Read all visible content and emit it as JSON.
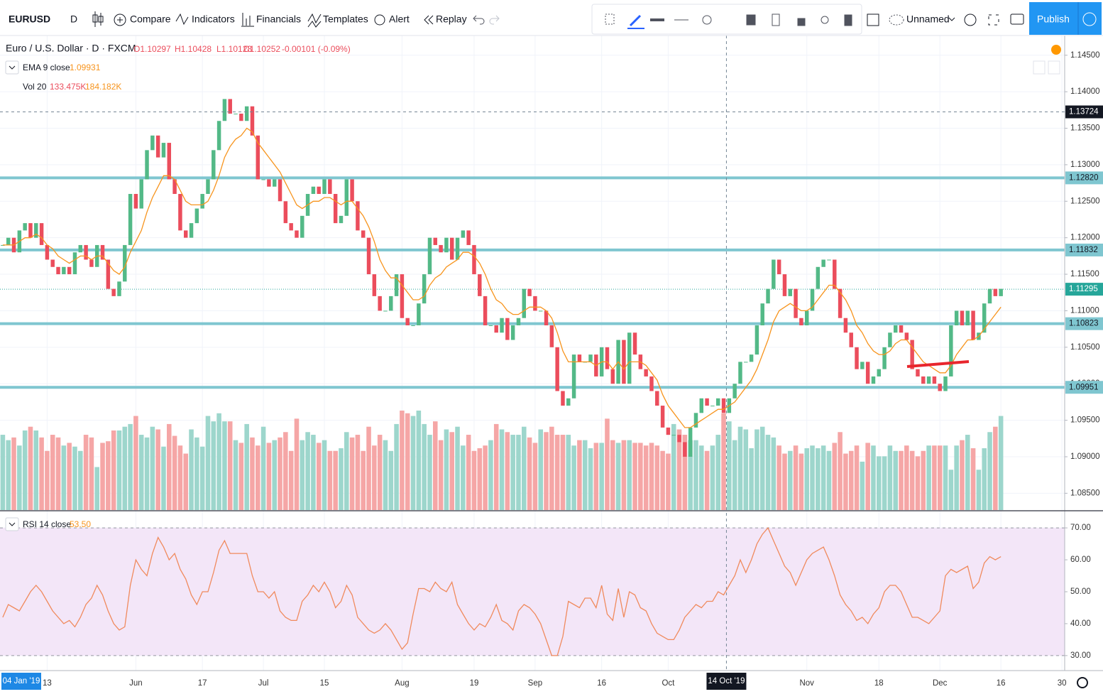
{
  "toolbar": {
    "symbol": "EURUSD",
    "interval": "D",
    "buttons": [
      "Compare",
      "Indicators",
      "Financials",
      "Templates",
      "Alert",
      "Replay"
    ],
    "layout_name": "Unnamed",
    "publish": "Publish"
  },
  "legend": {
    "symbol": "Euro / U.S. Dollar · D · FXCM",
    "ohlc": [
      "O1.10297",
      "H1.10428",
      "L1.10128",
      "C1.10252",
      "-0.00101 (-0.09%)"
    ],
    "ema": {
      "label": "EMA 9 close",
      "value": "1.09931"
    },
    "vol": {
      "label": "Vol 20",
      "values": [
        "133.475K",
        "184.182K"
      ]
    },
    "rsi": {
      "label": "RSI 14 close",
      "value": "53.50"
    }
  },
  "chart_data": [
    {
      "type": "candlestick",
      "xlim": [
        -0.5,
        191.5
      ],
      "ylim": [
        1.0827,
        1.1477
      ],
      "yticks": [
        {
          "value": 1.145,
          "label": "1.14500"
        },
        {
          "value": 1.14,
          "label": "1.14000"
        },
        {
          "value": 1.135,
          "label": "1.13500"
        },
        {
          "value": 1.13,
          "label": "1.13000"
        },
        {
          "value": 1.125,
          "label": "1.12500"
        },
        {
          "value": 1.12,
          "label": "1.12000"
        },
        {
          "value": 1.115,
          "label": "1.11500"
        },
        {
          "value": 1.11,
          "label": "1.11000"
        },
        {
          "value": 1.105,
          "label": "1.10500"
        },
        {
          "value": 1.1,
          "label": "1.10000"
        },
        {
          "value": 1.095,
          "label": "1.09500"
        },
        {
          "value": 1.09,
          "label": "1.09000"
        },
        {
          "value": 1.085,
          "label": "1.08500"
        }
      ],
      "up_color": "#53b987",
      "down_color": "#eb4d5c",
      "volume_up_color": "#9dd6cc",
      "volume_down_color": "#f5a6a6",
      "close": [
        1.119,
        1.12,
        1.118,
        1.121,
        1.122,
        1.12,
        1.122,
        1.119,
        1.117,
        1.116,
        1.115,
        1.116,
        1.115,
        1.118,
        1.119,
        1.117,
        1.116,
        1.119,
        1.117,
        1.113,
        1.112,
        1.114,
        1.119,
        1.126,
        1.124,
        1.128,
        1.132,
        1.134,
        1.131,
        1.133,
        1.128,
        1.126,
        1.121,
        1.12,
        1.122,
        1.124,
        1.126,
        1.128,
        1.132,
        1.136,
        1.139,
        1.137,
        1.137,
        1.136,
        1.138,
        1.134,
        1.128,
        1.128,
        1.127,
        1.128,
        1.125,
        1.122,
        1.121,
        1.12,
        1.123,
        1.126,
        1.127,
        1.126,
        1.128,
        1.126,
        1.122,
        1.123,
        1.128,
        1.125,
        1.121,
        1.12,
        1.115,
        1.112,
        1.11,
        1.11,
        1.112,
        1.115,
        1.109,
        1.108,
        1.108,
        1.111,
        1.115,
        1.12,
        1.119,
        1.118,
        1.12,
        1.117,
        1.12,
        1.121,
        1.119,
        1.115,
        1.112,
        1.108,
        1.108,
        1.107,
        1.109,
        1.106,
        1.108,
        1.109,
        1.113,
        1.112,
        1.11,
        1.11,
        1.108,
        1.105,
        1.099,
        1.097,
        1.098,
        1.104,
        1.103,
        1.103,
        1.104,
        1.101,
        1.105,
        1.102,
        1.1,
        1.106,
        1.1,
        1.107,
        1.104,
        1.102,
        1.101,
        1.099,
        1.097,
        1.094,
        1.093,
        1.093,
        1.092,
        1.09,
        1.094,
        1.096,
        1.098,
        1.097,
        1.097,
        1.098,
        1.096,
        1.098,
        1.1,
        1.103,
        1.103,
        1.104,
        1.108,
        1.111,
        1.113,
        1.117,
        1.115,
        1.112,
        1.113,
        1.109,
        1.108,
        1.11,
        1.113,
        1.116,
        1.117,
        1.117,
        1.113,
        1.109,
        1.107,
        1.105,
        1.102,
        1.103,
        1.1,
        1.101,
        1.102,
        1.105,
        1.107,
        1.108,
        1.107,
        1.106,
        1.102,
        1.101,
        1.1,
        1.101,
        1.1,
        1.099,
        1.101,
        1.108,
        1.11,
        1.108,
        1.11,
        1.106,
        1.107,
        1.111,
        1.113,
        1.112,
        1.113
      ],
      "series": [
        {
          "name": "EMA 9 close",
          "color": "#f7941d",
          "values": [
            1.119,
            1.119,
            1.119,
            1.1195,
            1.12,
            1.12,
            1.1205,
            1.12,
            1.119,
            1.1185,
            1.1175,
            1.117,
            1.1165,
            1.117,
            1.1175,
            1.1175,
            1.117,
            1.1175,
            1.1175,
            1.1165,
            1.1155,
            1.115,
            1.116,
            1.118,
            1.1195,
            1.121,
            1.1235,
            1.1255,
            1.127,
            1.1285,
            1.1285,
            1.128,
            1.1265,
            1.125,
            1.1245,
            1.1245,
            1.1245,
            1.125,
            1.1265,
            1.1285,
            1.131,
            1.1325,
            1.1335,
            1.134,
            1.135,
            1.1345,
            1.133,
            1.132,
            1.131,
            1.13,
            1.129,
            1.1275,
            1.126,
            1.1245,
            1.124,
            1.1245,
            1.125,
            1.125,
            1.1255,
            1.1255,
            1.125,
            1.1245,
            1.125,
            1.125,
            1.124,
            1.123,
            1.1215,
            1.1195,
            1.117,
            1.1155,
            1.1145,
            1.1145,
            1.1135,
            1.1125,
            1.1115,
            1.1115,
            1.112,
            1.1135,
            1.1145,
            1.115,
            1.116,
            1.1165,
            1.117,
            1.118,
            1.118,
            1.1175,
            1.1165,
            1.115,
            1.113,
            1.1115,
            1.111,
            1.11,
            1.1095,
            1.1095,
            1.11,
            1.1105,
            1.1105,
            1.1105,
            1.11,
            1.109,
            1.107,
            1.1045,
            1.103,
            1.103,
            1.103,
            1.103,
            1.103,
            1.1025,
            1.103,
            1.103,
            1.102,
            1.103,
            1.102,
            1.103,
            1.103,
            1.103,
            1.1025,
            1.1015,
            1.1005,
            1.0985,
            1.097,
            1.096,
            1.095,
            1.094,
            1.094,
            1.0945,
            1.095,
            1.0955,
            1.096,
            1.0965,
            1.0965,
            1.097,
            1.0975,
            1.0985,
            1.0995,
            1.1005,
            1.102,
            1.104,
            1.106,
            1.1085,
            1.11,
            1.1105,
            1.111,
            1.1105,
            1.11,
            1.11,
            1.1105,
            1.1115,
            1.1125,
            1.1135,
            1.1135,
            1.1125,
            1.1115,
            1.11,
            1.108,
            1.107,
            1.1055,
            1.1045,
            1.104,
            1.104,
            1.1045,
            1.1055,
            1.106,
            1.106,
            1.105,
            1.104,
            1.103,
            1.1025,
            1.102,
            1.1015,
            1.1015,
            1.1025,
            1.104,
            1.105,
            1.106,
            1.106,
            1.1065,
            1.1075,
            1.1085,
            1.1095,
            1.1105
          ]
        }
      ],
      "volume": [
        140,
        130,
        135,
        120,
        148,
        155,
        148,
        135,
        110,
        140,
        135,
        120,
        125,
        118,
        110,
        140,
        135,
        80,
        125,
        128,
        148,
        148,
        155,
        160,
        175,
        140,
        135,
        155,
        150,
        118,
        160,
        138,
        120,
        105,
        150,
        135,
        118,
        175,
        165,
        180,
        165,
        165,
        130,
        125,
        160,
        135,
        120,
        155,
        125,
        130,
        135,
        145,
        110,
        170,
        130,
        145,
        140,
        125,
        130,
        110,
        110,
        115,
        145,
        135,
        140,
        110,
        155,
        120,
        140,
        130,
        110,
        160,
        185,
        180,
        175,
        185,
        160,
        140,
        165,
        130,
        150,
        145,
        155,
        120,
        140,
        110,
        115,
        120,
        130,
        160,
        150,
        145,
        140,
        140,
        155,
        135,
        125,
        150,
        145,
        155,
        140,
        140,
        140,
        120,
        130,
        130,
        115,
        125,
        125,
        170,
        130,
        125,
        130,
        130,
        125,
        125,
        120,
        125,
        120,
        110,
        105,
        160,
        150,
        140,
        130,
        130,
        120,
        110,
        120,
        140,
        180,
        165,
        130,
        155,
        150,
        115,
        150,
        155,
        140,
        135,
        120,
        105,
        110,
        120,
        105,
        115,
        120,
        115,
        120,
        110,
        125,
        145,
        105,
        110,
        120,
        90,
        125,
        120,
        100,
        100,
        120,
        110,
        110,
        120,
        110,
        100,
        110,
        120,
        120,
        120,
        120,
        75,
        120,
        130,
        140,
        115,
        75,
        115,
        145,
        155,
        175
      ],
      "levels": [
        {
          "value": 1.1282,
          "label": "1.12820"
        },
        {
          "value": 1.11832,
          "label": "1.11832"
        },
        {
          "value": 1.10823,
          "label": "1.10823"
        },
        {
          "value": 1.09951,
          "label": "1.09951"
        }
      ],
      "level_color": "#7fc6d0",
      "last_price": {
        "value": 1.11295,
        "label": "1.11295"
      },
      "last_color": "#26a69a",
      "crosshair": {
        "x": 130,
        "x_label": "14 Oct '19",
        "y": 1.13724
      }
    },
    {
      "type": "line",
      "xlim": [
        -0.5,
        191.5
      ],
      "ylim": [
        25.3,
        74.7
      ],
      "yticks": [
        {
          "value": 70,
          "label": "70.00"
        },
        {
          "value": 60,
          "label": "60.00"
        },
        {
          "value": 50,
          "label": "50.00"
        },
        {
          "value": 40,
          "label": "40.00"
        },
        {
          "value": 30,
          "label": "30.00"
        }
      ],
      "band": [
        30,
        70
      ],
      "band_color": "#f3e6f8",
      "xticks": [
        {
          "value": 8,
          "label": "13"
        },
        {
          "value": 24,
          "label": "Jun"
        },
        {
          "value": 36,
          "label": "17"
        },
        {
          "value": 47,
          "label": "Jul"
        },
        {
          "value": 58,
          "label": "15"
        },
        {
          "value": 72,
          "label": "Aug"
        },
        {
          "value": 85,
          "label": "19"
        },
        {
          "value": 96,
          "label": "Sep"
        },
        {
          "value": 108,
          "label": "16"
        },
        {
          "value": 120,
          "label": "Oct"
        },
        {
          "value": 145,
          "label": "Nov"
        },
        {
          "value": 158,
          "label": "18"
        },
        {
          "value": 169,
          "label": "Dec"
        },
        {
          "value": 180,
          "label": "16"
        },
        {
          "value": 191,
          "label": "30"
        }
      ],
      "start_label": "04 Jan '19",
      "series": [
        {
          "name": "RSI 14 close",
          "color": "#f08a5d",
          "values": [
            42,
            46,
            45,
            44,
            47,
            50,
            52,
            50,
            47,
            44,
            42,
            40,
            41,
            39,
            42,
            46,
            48,
            52,
            49,
            44,
            40,
            38,
            39,
            52,
            60,
            57,
            55,
            62,
            67,
            64,
            60,
            62,
            57,
            54,
            49,
            46,
            50,
            50,
            56,
            63,
            66,
            62,
            62,
            62,
            62,
            55,
            50,
            50,
            48,
            50,
            44,
            42,
            41,
            41,
            47,
            49,
            52,
            50,
            53,
            50,
            45,
            47,
            52,
            49,
            42,
            40,
            38,
            37,
            38,
            40,
            38,
            35,
            32,
            34,
            43,
            51,
            51,
            50,
            53,
            51,
            50,
            53,
            46,
            43,
            40,
            38,
            40,
            39,
            42,
            46,
            41,
            40,
            38,
            44,
            46,
            45,
            43,
            40,
            35,
            30,
            30,
            36,
            47,
            46,
            45,
            48,
            48,
            45,
            52,
            43,
            41,
            51,
            42,
            50,
            49,
            45,
            44,
            40,
            37,
            36,
            35,
            35,
            38,
            42,
            44,
            46,
            45,
            47,
            47,
            50,
            49,
            52,
            55,
            60,
            56,
            60,
            65,
            68,
            70,
            66,
            62,
            58,
            56,
            52,
            56,
            60,
            62,
            63,
            64,
            60,
            55,
            49,
            46,
            44,
            41,
            42,
            40,
            43,
            45,
            50,
            52,
            52,
            50,
            46,
            42,
            42,
            41,
            40,
            42,
            44,
            55,
            57,
            56,
            57,
            58,
            51,
            53,
            59,
            61,
            60,
            61
          ]
        }
      ]
    }
  ]
}
